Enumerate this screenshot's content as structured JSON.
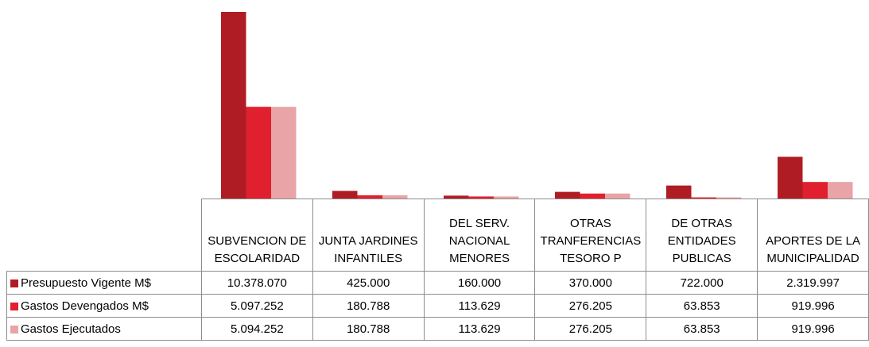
{
  "chart_data": {
    "type": "bar",
    "categories": [
      "SUBVENCION DE ESCOLARIDAD",
      "JUNTA JARDINES INFANTILES",
      "DEL SERV. NACIONAL MENORES",
      "OTRAS TRANFERENCIAS TESORO P",
      "DE OTRAS ENTIDADES PUBLICAS",
      "APORTES DE LA MUNICIPALIDAD"
    ],
    "series": [
      {
        "name": "Presupuesto Vigente M$",
        "color": "#b01c24",
        "values": [
          10378070,
          425000,
          160000,
          370000,
          722000,
          2319997
        ],
        "value_labels": [
          "10.378.070",
          "425.000",
          "160.000",
          "370.000",
          "722.000",
          "2.319.997"
        ]
      },
      {
        "name": "Gastos Devengados M$",
        "color": "#e0202e",
        "values": [
          5097252,
          180788,
          113629,
          276205,
          63853,
          919996
        ],
        "value_labels": [
          "5.097.252",
          "180.788",
          "113.629",
          "276.205",
          "63.853",
          "919.996"
        ]
      },
      {
        "name": "Gastos Ejecutados",
        "color": "#e8a4a6",
        "values": [
          5094252,
          180788,
          113629,
          276205,
          63853,
          919996
        ],
        "value_labels": [
          "5.094.252",
          "180.788",
          "113.629",
          "276.205",
          "63.853",
          "919.996"
        ]
      }
    ]
  }
}
